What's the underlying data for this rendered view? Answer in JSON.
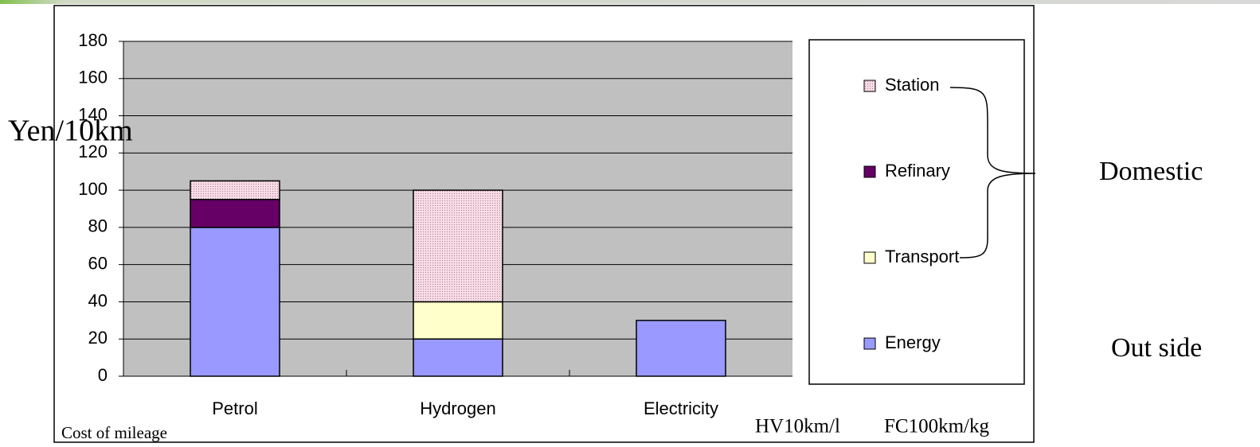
{
  "chart_data": {
    "type": "stacked_bar",
    "y_label": "Yen/10km",
    "categories": [
      "Petrol",
      "Hydrogen",
      "Electricity"
    ],
    "series": [
      {
        "name": "Energy",
        "color": "#9999ff",
        "values": [
          80,
          20,
          30
        ]
      },
      {
        "name": "Transport",
        "color": "#ffffcc",
        "values": [
          0,
          20,
          0
        ]
      },
      {
        "name": "Refinary",
        "color": "#660066",
        "values": [
          15,
          0,
          0
        ]
      },
      {
        "name": "Station",
        "color": "#f6dbe6",
        "pattern": "dots",
        "values": [
          10,
          60,
          0
        ]
      }
    ],
    "ylim": [
      0,
      180
    ],
    "yticks": [
      0,
      20,
      40,
      60,
      80,
      100,
      120,
      140,
      160,
      180
    ],
    "grid": true,
    "legend": "right",
    "annotations": {
      "domestic": "Domestic",
      "outside": "Out side",
      "cost": "Cost of  mileage",
      "hv": "HV10km/l",
      "fc": "FC100km/kg"
    }
  }
}
